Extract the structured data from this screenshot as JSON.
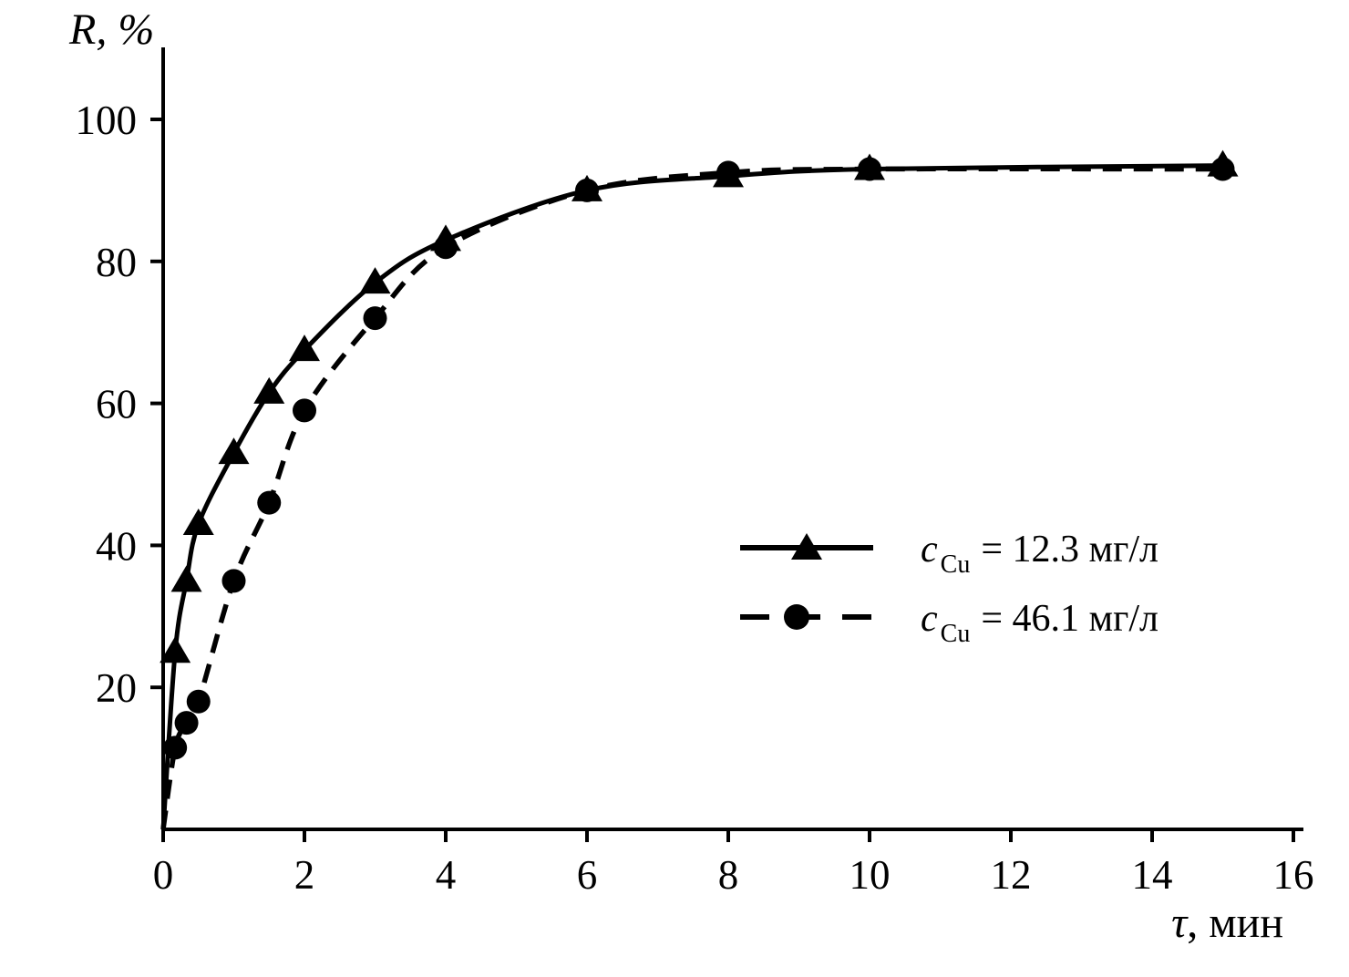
{
  "labels": {
    "y_title": "R, %",
    "x_title_tau": "τ",
    "x_title_rest": ", мин"
  },
  "colors": {
    "foreground": "#000000",
    "background": "#ffffff"
  },
  "chart_data": {
    "type": "line",
    "title": "",
    "xlabel": "τ, мин",
    "ylabel": "R, %",
    "xlim": [
      0,
      16.2
    ],
    "ylim": [
      0,
      110
    ],
    "x_ticks": [
      0,
      2,
      4,
      6,
      8,
      10,
      12,
      14,
      16
    ],
    "y_ticks": [
      20,
      40,
      60,
      80,
      100
    ],
    "grid": false,
    "legend_position": "center-right",
    "series": [
      {
        "name": "c_Cu = 12.3 мг/л",
        "label_prefix": "c",
        "label_sub": "Cu",
        "label_rest": "= 12.3 мг/л",
        "marker": "triangle",
        "line_style": "solid",
        "color": "#000000",
        "x": [
          0,
          0.17,
          0.33,
          0.5,
          1,
          1.5,
          2,
          3,
          4,
          6,
          8,
          10,
          15
        ],
        "y": [
          0,
          25,
          35,
          43,
          53,
          61.5,
          67.5,
          77,
          83,
          90,
          92,
          93,
          93.5
        ]
      },
      {
        "name": "c_Cu = 46.1 мг/л",
        "label_prefix": "c",
        "label_sub": "Cu",
        "label_rest": "= 46.1 мг/л",
        "marker": "circle",
        "line_style": "dashed",
        "color": "#000000",
        "x": [
          0,
          0.17,
          0.33,
          0.5,
          1,
          1.5,
          2,
          3,
          4,
          6,
          8,
          10,
          15
        ],
        "y": [
          0,
          11.5,
          15,
          18,
          35,
          46,
          59,
          72,
          82,
          90,
          92.5,
          93,
          93
        ]
      }
    ]
  }
}
